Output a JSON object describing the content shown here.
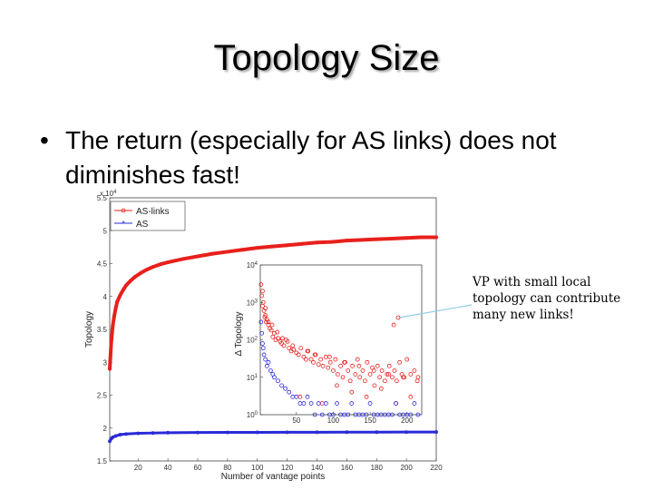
{
  "slide": {
    "title": "Topology Size",
    "bullet": "The return (especially for AS links) does not diminishes fast!",
    "annotation": "VP with small local topology can contribute many new links!"
  },
  "colors": {
    "as_links": "#e8201c",
    "as": "#2a2ad8",
    "callout": "#8ecde8"
  },
  "chart_data": [
    {
      "type": "line",
      "xlabel": "Number of vantage points",
      "ylabel": "Topology",
      "y_multiplier": "x 10",
      "y_multiplier_exp": "4",
      "xlim": [
        1,
        220
      ],
      "ylim": [
        1.5,
        5.5
      ],
      "xticks": [
        20,
        40,
        60,
        80,
        100,
        120,
        140,
        160,
        180,
        200,
        220
      ],
      "yticks": [
        1.5,
        2,
        2.5,
        3,
        3.5,
        4,
        4.5,
        5,
        5.5
      ],
      "legend_position": "top-left",
      "series": [
        {
          "name": "AS-links",
          "x": [
            1,
            2,
            3,
            4,
            5,
            6,
            8,
            10,
            12,
            15,
            18,
            22,
            26,
            30,
            35,
            40,
            50,
            60,
            70,
            80,
            90,
            100,
            110,
            120,
            130,
            140,
            150,
            160,
            170,
            180,
            190,
            200,
            210,
            220
          ],
          "values": [
            2.9,
            3.3,
            3.55,
            3.7,
            3.82,
            3.92,
            4.02,
            4.1,
            4.17,
            4.24,
            4.3,
            4.36,
            4.41,
            4.45,
            4.49,
            4.52,
            4.57,
            4.61,
            4.65,
            4.68,
            4.71,
            4.74,
            4.76,
            4.78,
            4.8,
            4.82,
            4.83,
            4.85,
            4.86,
            4.87,
            4.88,
            4.89,
            4.9,
            4.9
          ]
        },
        {
          "name": "AS",
          "x": [
            1,
            2,
            3,
            5,
            8,
            12,
            20,
            30,
            40,
            60,
            80,
            100,
            120,
            140,
            160,
            180,
            200,
            220
          ],
          "values": [
            1.8,
            1.84,
            1.86,
            1.88,
            1.9,
            1.91,
            1.92,
            1.925,
            1.93,
            1.932,
            1.934,
            1.935,
            1.936,
            1.937,
            1.938,
            1.938,
            1.939,
            1.94
          ]
        }
      ]
    },
    {
      "type": "scatter",
      "xlabel": "",
      "ylabel": "Δ Topology",
      "y_scale": "log",
      "xlim": [
        1,
        220
      ],
      "ylim": [
        1,
        10000
      ],
      "xticks": [
        50,
        100,
        150,
        200
      ],
      "yticks": [
        1,
        10,
        100,
        1000,
        10000
      ],
      "ytick_base": "10",
      "ytick_exps": [
        "0",
        "1",
        "2",
        "3",
        "4"
      ],
      "series": [
        {
          "name": "AS-links",
          "x": [
            2,
            3,
            4,
            5,
            6,
            7,
            8,
            9,
            10,
            12,
            14,
            16,
            18,
            20,
            22,
            25,
            28,
            30,
            33,
            36,
            40,
            43,
            46,
            50,
            53,
            56,
            60,
            63,
            66,
            70,
            73,
            76,
            80,
            83,
            86,
            90,
            93,
            96,
            100,
            103,
            106,
            110,
            113,
            116,
            120,
            123,
            126,
            130,
            133,
            136,
            140,
            143,
            146,
            150,
            153,
            156,
            160,
            163,
            166,
            170,
            173,
            176,
            180,
            183,
            186,
            190,
            193,
            196,
            200,
            205,
            210,
            215,
            4,
            8,
            12,
            17,
            24,
            31,
            38,
            45,
            55,
            65,
            75,
            85,
            95,
            105,
            115,
            125,
            135,
            145,
            155,
            165,
            175,
            185,
            195,
            205,
            214,
            182
          ],
          "values": [
            3000,
            1500,
            800,
            1000,
            600,
            400,
            450,
            300,
            350,
            250,
            200,
            180,
            120,
            150,
            100,
            110,
            90,
            80,
            70,
            100,
            60,
            50,
            55,
            45,
            40,
            60,
            35,
            30,
            50,
            30,
            25,
            40,
            22,
            30,
            20,
            35,
            18,
            25,
            15,
            30,
            12,
            20,
            10,
            25,
            15,
            8,
            20,
            12,
            30,
            10,
            15,
            8,
            25,
            12,
            18,
            6,
            20,
            10,
            15,
            8,
            12,
            20,
            10,
            15,
            8,
            25,
            12,
            10,
            30,
            12,
            15,
            10,
            2000,
            700,
            300,
            250,
            160,
            110,
            90,
            70,
            3,
            50,
            40,
            2,
            35,
            6,
            25,
            4,
            20,
            3,
            15,
            5,
            12,
            2,
            10,
            3,
            8,
            250
          ]
        },
        {
          "name": "AS",
          "x": [
            2,
            3,
            4,
            5,
            6,
            8,
            10,
            12,
            15,
            18,
            20,
            25,
            30,
            35,
            40,
            45,
            50,
            55,
            60,
            65,
            70,
            75,
            80,
            85,
            90,
            95,
            100,
            105,
            110,
            115,
            120,
            125,
            130,
            135,
            140,
            145,
            150,
            155,
            160,
            165,
            170,
            175,
            180,
            185,
            190,
            195,
            200,
            205,
            210,
            215
          ],
          "values": [
            300,
            150,
            80,
            60,
            40,
            30,
            20,
            25,
            15,
            12,
            10,
            8,
            6,
            5,
            4,
            3,
            3,
            2,
            2,
            3,
            2,
            1,
            2,
            1,
            2,
            1,
            1,
            2,
            1,
            1,
            1,
            2,
            1,
            1,
            1,
            1,
            2,
            1,
            1,
            1,
            1,
            1,
            1,
            2,
            1,
            1,
            1,
            1,
            2,
            1
          ]
        }
      ]
    }
  ]
}
